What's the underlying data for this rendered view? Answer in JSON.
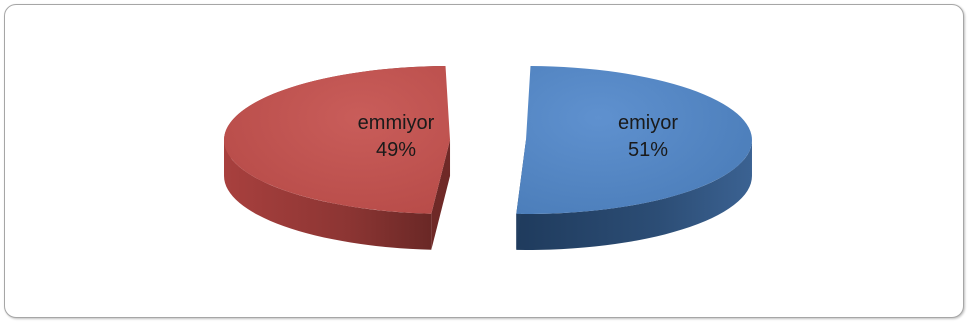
{
  "chart_data": {
    "type": "pie",
    "style": "3d-exploded",
    "slices": [
      {
        "label": "emiyor",
        "value": 51,
        "percent_label": "51%",
        "color": "#4f81bd",
        "side_color": "#2c4d75"
      },
      {
        "label": "emmiyor",
        "value": 49,
        "percent_label": "49%",
        "color": "#c0504d",
        "side_color": "#7e2e2c"
      }
    ],
    "legend": "none",
    "data_labels": "category and percentage, inside slices"
  }
}
